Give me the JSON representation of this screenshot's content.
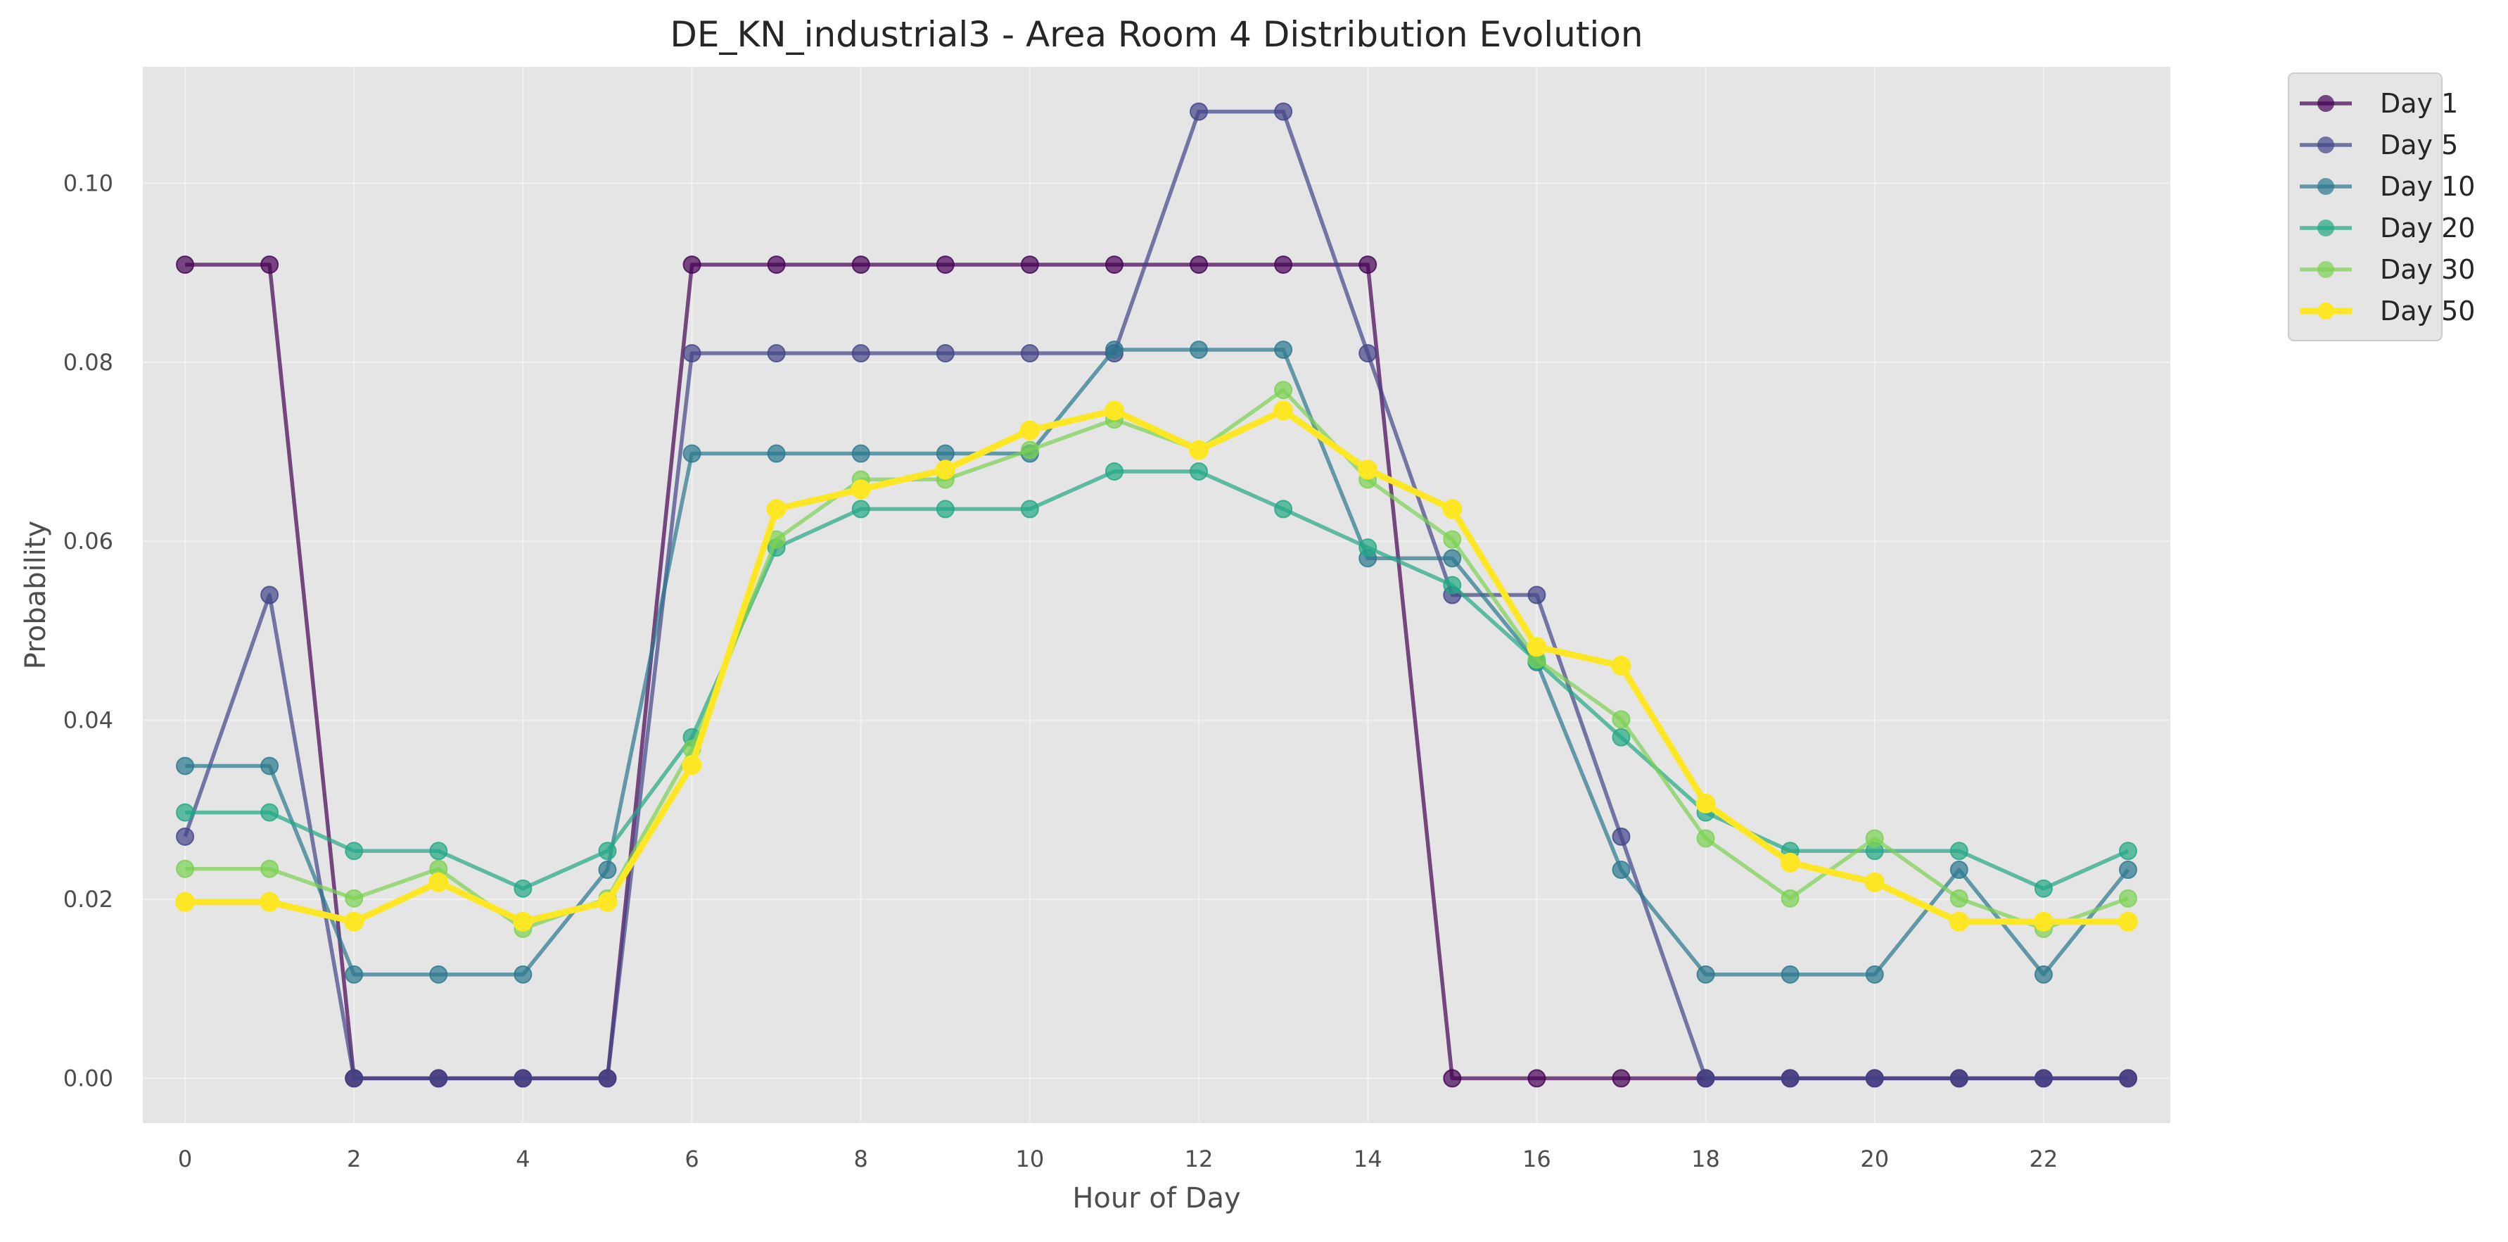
{
  "chart_data": {
    "type": "line",
    "title": "DE_KN_industrial3 - Area Room 4 Distribution Evolution",
    "xlabel": "Hour of Day",
    "ylabel": "Probability",
    "xlim": [
      -0.5,
      23.5
    ],
    "ylim": [
      -0.005,
      0.113
    ],
    "x": [
      0,
      1,
      2,
      3,
      4,
      5,
      6,
      7,
      8,
      9,
      10,
      11,
      12,
      13,
      14,
      15,
      16,
      17,
      18,
      19,
      20,
      21,
      22,
      23
    ],
    "xticks": [
      0,
      2,
      4,
      6,
      8,
      10,
      12,
      14,
      16,
      18,
      20,
      22
    ],
    "xtick_labels": [
      "0",
      "2",
      "4",
      "6",
      "8",
      "10",
      "12",
      "14",
      "16",
      "18",
      "20",
      "22"
    ],
    "yticks": [
      0.0,
      0.02,
      0.04,
      0.06,
      0.08,
      0.1
    ],
    "ytick_labels": [
      "0.00",
      "0.02",
      "0.04",
      "0.06",
      "0.08",
      "0.10"
    ],
    "grid": true,
    "legend_position": "outside top-right",
    "background": "#e5e5e5",
    "series": [
      {
        "name": "Day 1",
        "color": "#440154",
        "values": [
          0.0909,
          0.0909,
          0.0,
          0.0,
          0.0,
          0.0,
          0.0909,
          0.0909,
          0.0909,
          0.0909,
          0.0909,
          0.0909,
          0.0909,
          0.0909,
          0.0909,
          0.0,
          0.0,
          0.0,
          0.0,
          0.0,
          0.0,
          0.0,
          0.0,
          0.0
        ]
      },
      {
        "name": "Day 5",
        "color": "#414487",
        "values": [
          0.027,
          0.054,
          0.0,
          0.0,
          0.0,
          0.0,
          0.081,
          0.081,
          0.081,
          0.081,
          0.081,
          0.081,
          0.108,
          0.108,
          0.081,
          0.054,
          0.054,
          0.027,
          0.0,
          0.0,
          0.0,
          0.0,
          0.0,
          0.0
        ]
      },
      {
        "name": "Day 10",
        "color": "#2a788e",
        "values": [
          0.0349,
          0.0349,
          0.0116,
          0.0116,
          0.0116,
          0.0233,
          0.0698,
          0.0698,
          0.0698,
          0.0698,
          0.0698,
          0.0814,
          0.0814,
          0.0814,
          0.0581,
          0.0581,
          0.0465,
          0.0233,
          0.0116,
          0.0116,
          0.0116,
          0.0233,
          0.0116,
          0.0233
        ]
      },
      {
        "name": "Day 20",
        "color": "#22a884",
        "values": [
          0.0297,
          0.0297,
          0.0254,
          0.0254,
          0.0212,
          0.0254,
          0.0381,
          0.0593,
          0.0636,
          0.0636,
          0.0636,
          0.0678,
          0.0678,
          0.0636,
          0.0593,
          0.0551,
          0.0466,
          0.0381,
          0.0297,
          0.0254,
          0.0254,
          0.0254,
          0.0212,
          0.0254
        ]
      },
      {
        "name": "Day 30",
        "color": "#7ad151",
        "values": [
          0.0234,
          0.0234,
          0.0201,
          0.0234,
          0.0167,
          0.0201,
          0.0368,
          0.0602,
          0.0669,
          0.0669,
          0.0702,
          0.0736,
          0.0702,
          0.0769,
          0.0669,
          0.0602,
          0.0468,
          0.0401,
          0.0268,
          0.0201,
          0.0268,
          0.0201,
          0.0167,
          0.0201
        ]
      },
      {
        "name": "Day 50",
        "color": "#fde725",
        "values": [
          0.0197,
          0.0197,
          0.0175,
          0.0219,
          0.0175,
          0.0197,
          0.035,
          0.0636,
          0.0658,
          0.068,
          0.0724,
          0.0746,
          0.0702,
          0.0746,
          0.068,
          0.0636,
          0.0482,
          0.0461,
          0.0307,
          0.0241,
          0.0219,
          0.0175,
          0.0175,
          0.0175
        ]
      }
    ]
  }
}
